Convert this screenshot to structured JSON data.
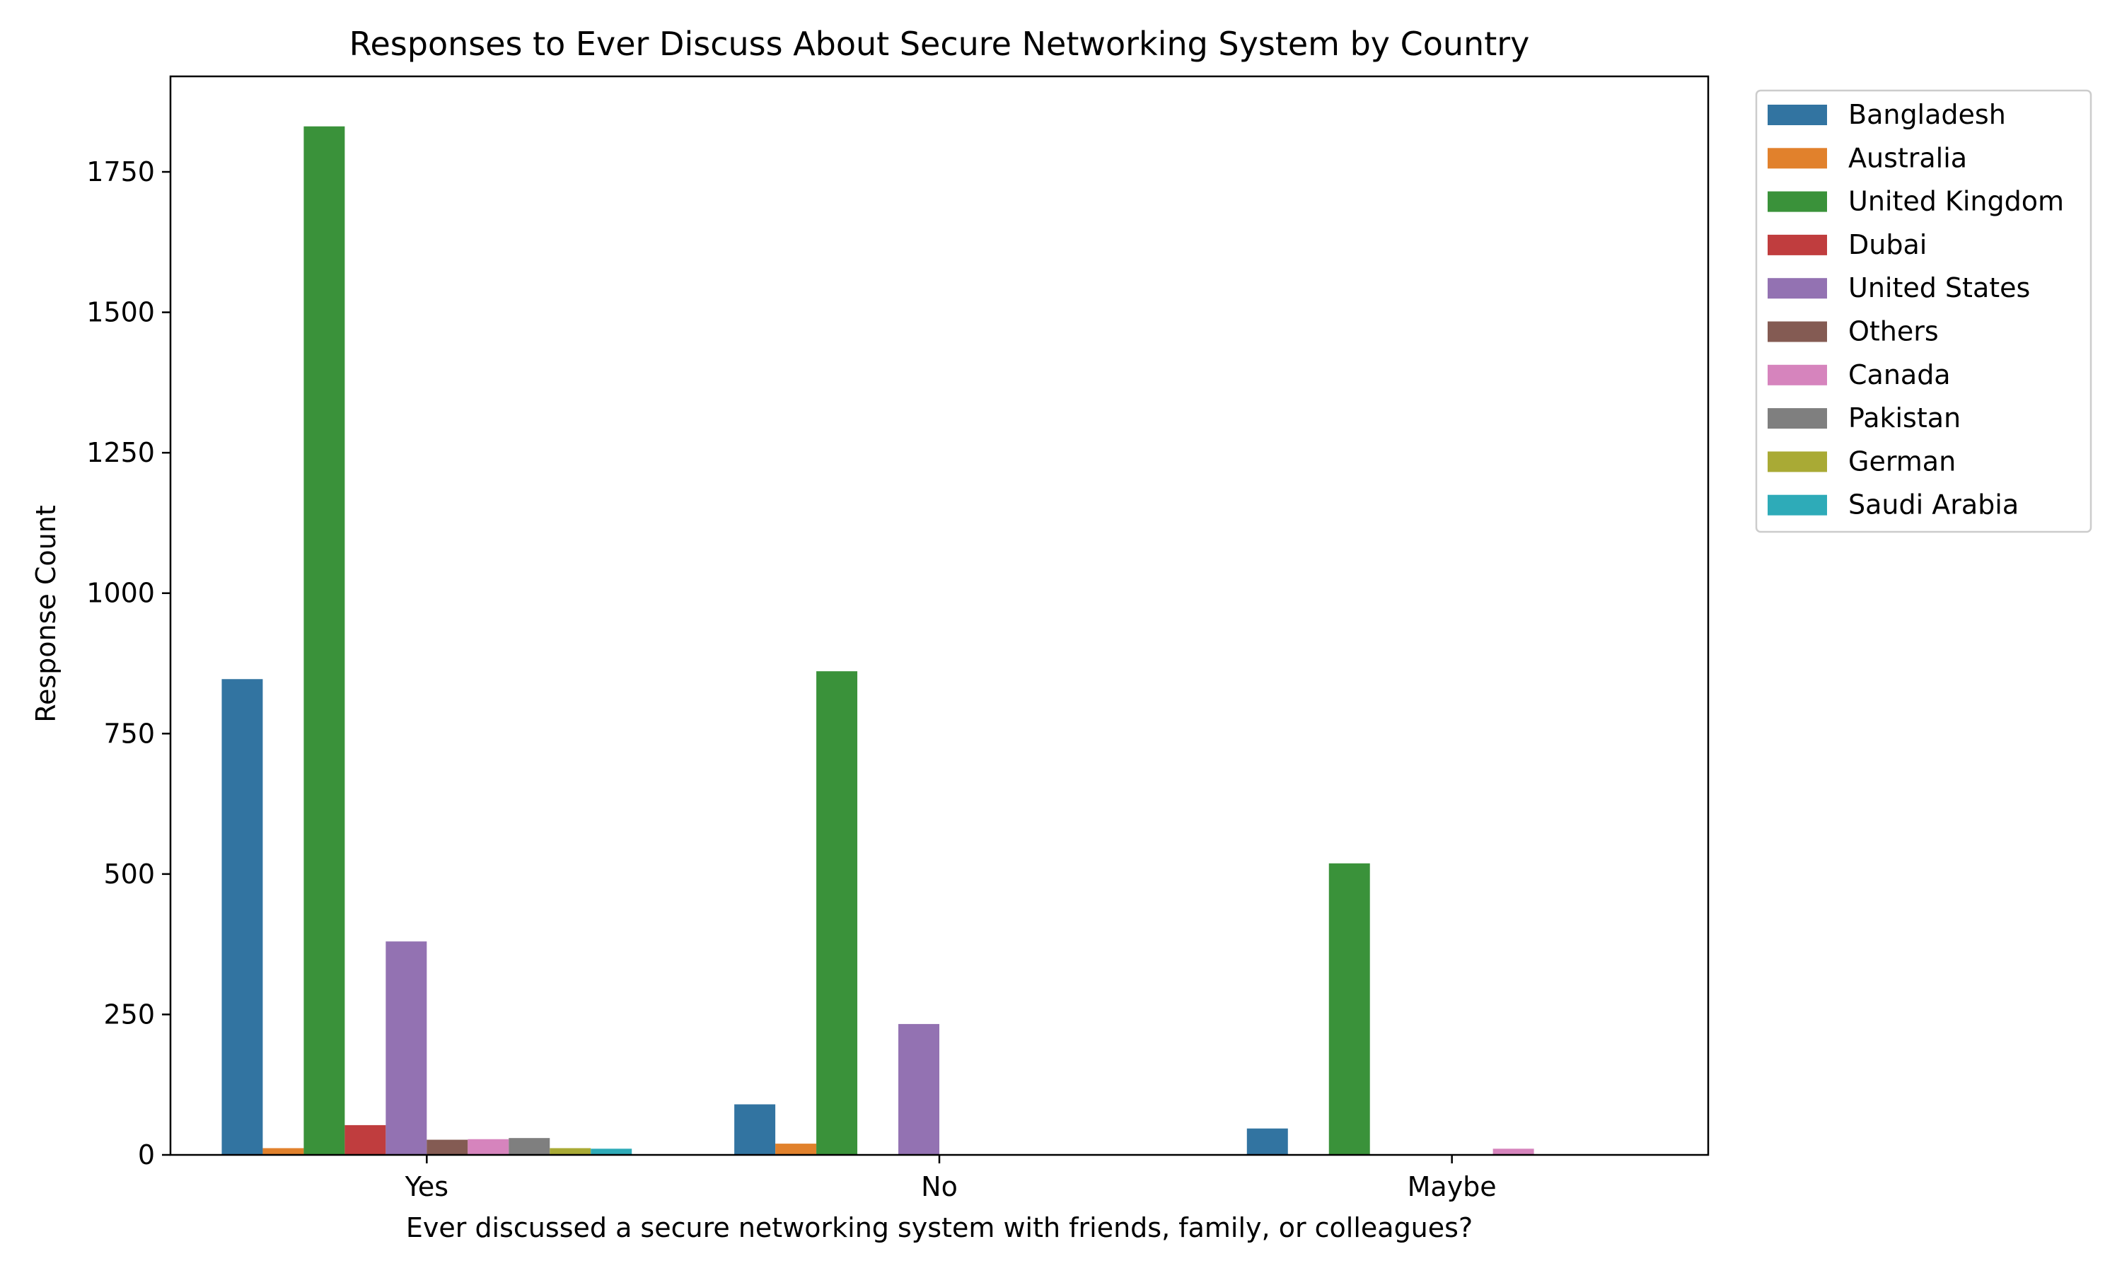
{
  "chart_data": {
    "type": "bar",
    "title": "Responses to Ever Discuss About Secure Networking System by Country",
    "xlabel": "Ever discussed a secure networking system with friends, family, or colleagues?",
    "ylabel": "Response Count",
    "categories": [
      "Yes",
      "No",
      "Maybe"
    ],
    "ylim": [
      0,
      1920
    ],
    "yticks": [
      0,
      250,
      500,
      750,
      1000,
      1250,
      1500,
      1750
    ],
    "ytick_labels": [
      "0",
      "250",
      "500",
      "750",
      "1000",
      "1250",
      "1500",
      "1750"
    ],
    "grid": false,
    "legend_position": "outside-top-right",
    "series": [
      {
        "name": "Bangladesh",
        "color": "#3274a1",
        "values": [
          847,
          90,
          47
        ]
      },
      {
        "name": "Australia",
        "color": "#e1812c",
        "values": [
          12,
          20,
          0
        ]
      },
      {
        "name": "United Kingdom",
        "color": "#3a923a",
        "values": [
          1831,
          861,
          519
        ]
      },
      {
        "name": "Dubai",
        "color": "#c03d3e",
        "values": [
          53,
          0,
          0
        ]
      },
      {
        "name": "United States",
        "color": "#9372b2",
        "values": [
          380,
          233,
          0
        ]
      },
      {
        "name": "Others",
        "color": "#845b53",
        "values": [
          27,
          0,
          0
        ]
      },
      {
        "name": "Canada",
        "color": "#d684bd",
        "values": [
          28,
          0,
          11
        ]
      },
      {
        "name": "Pakistan",
        "color": "#7f7f7f",
        "values": [
          30,
          0,
          0
        ]
      },
      {
        "name": "German",
        "color": "#a9aa35",
        "values": [
          12,
          0,
          0
        ]
      },
      {
        "name": "Saudi Arabia",
        "color": "#2eabb8",
        "values": [
          11,
          0,
          0
        ]
      }
    ]
  }
}
